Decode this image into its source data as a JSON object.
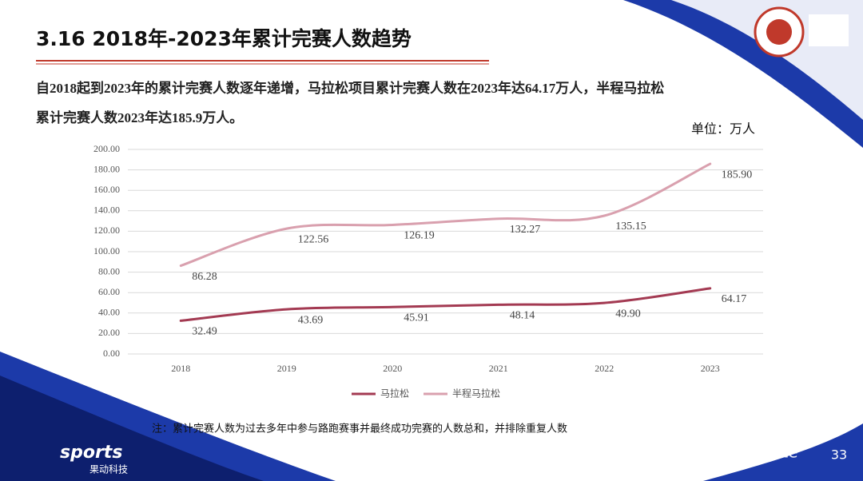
{
  "header": {
    "title": "3.16 2018年-2023年累计完赛人数趋势",
    "description": [
      "自2018起到2023年的累计完赛人数逐年递增，马拉松项目累计完赛人数在2023年达64.17万人，半程马拉松",
      "累计完赛人数2023年达185.9万人。"
    ]
  },
  "chart_data": {
    "type": "line",
    "unit": "单位：万人",
    "categories": [
      "2018",
      "2019",
      "2020",
      "2021",
      "2022",
      "2023"
    ],
    "series": [
      {
        "name": "马拉松",
        "color": "#a33a52",
        "values": [
          32.49,
          43.69,
          45.91,
          48.14,
          49.9,
          64.17
        ],
        "value_labels": [
          "32.49",
          "43.69",
          "45.91",
          "48.14",
          "49.90",
          "64.17"
        ]
      },
      {
        "name": "半程马拉松",
        "color": "#d9a0ae",
        "values": [
          86.28,
          122.56,
          126.19,
          132.27,
          135.15,
          185.9
        ],
        "value_labels": [
          "86.28",
          "122.56",
          "126.19",
          "132.27",
          "135.15",
          "185.90"
        ]
      }
    ],
    "ylim": [
      0,
      200
    ],
    "yticks": [
      {
        "value": 0,
        "label": "0.00"
      },
      {
        "value": 20,
        "label": "20.00"
      },
      {
        "value": 40,
        "label": "40.00"
      },
      {
        "value": 60,
        "label": "60.00"
      },
      {
        "value": 80,
        "label": "80.00"
      },
      {
        "value": 100,
        "label": "100.00"
      },
      {
        "value": 120,
        "label": "120.00"
      },
      {
        "value": 140,
        "label": "140.00"
      },
      {
        "value": 160,
        "label": "160.00"
      },
      {
        "value": 180,
        "label": "180.00"
      },
      {
        "value": 200,
        "label": "200.00"
      }
    ],
    "grid": true,
    "legend": "bottom"
  },
  "footer": {
    "note": "注：累计完赛人数为过去多年中参与路跑赛事并最终成功完赛的人数总和，并排除重复人数",
    "brand": "sports",
    "brand_sub": "果动科技",
    "watermark": "@精英跑者elite",
    "page": "33"
  }
}
